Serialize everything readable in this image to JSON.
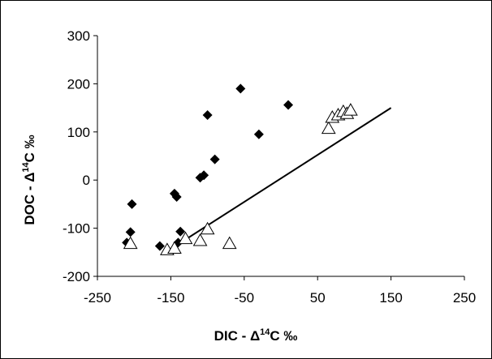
{
  "chart_data": {
    "type": "scatter",
    "title": "",
    "xlabel": {
      "pre": "DIC - Δ",
      "sup": "14",
      "post": "C ‰"
    },
    "ylabel": {
      "pre": "DOC - Δ",
      "sup": "14",
      "post": "C ‰"
    },
    "xlim": [
      -250,
      250
    ],
    "ylim": [
      -200,
      300
    ],
    "xticks": [
      "-250",
      "-150",
      "-50",
      "50",
      "150",
      "250"
    ],
    "yticks": [
      "-200",
      "-100",
      "0",
      "100",
      "200",
      "300"
    ],
    "grid": false,
    "legend": "none",
    "series": [
      {
        "marker": "filled-diamond",
        "color": "#000000",
        "points": [
          [
            -210,
            -130
          ],
          [
            -205,
            -108
          ],
          [
            -203,
            -50
          ],
          [
            -165,
            -137
          ],
          [
            -145,
            -28
          ],
          [
            -142,
            -35
          ],
          [
            -140,
            -130
          ],
          [
            -137,
            -107
          ],
          [
            -110,
            5
          ],
          [
            -105,
            10
          ],
          [
            -100,
            135
          ],
          [
            -90,
            43
          ],
          [
            -55,
            190
          ],
          [
            -30,
            95
          ],
          [
            10,
            156
          ]
        ]
      },
      {
        "marker": "open-triangle",
        "color": "#000000",
        "points": [
          [
            -205,
            -132
          ],
          [
            -155,
            -145
          ],
          [
            -145,
            -142
          ],
          [
            -130,
            -122
          ],
          [
            -110,
            -126
          ],
          [
            -100,
            -102
          ],
          [
            -70,
            -132
          ],
          [
            65,
            107
          ],
          [
            70,
            130
          ],
          [
            78,
            135
          ],
          [
            85,
            142
          ],
          [
            90,
            138
          ],
          [
            95,
            145
          ]
        ]
      }
    ],
    "trendline": {
      "from": [
        -155,
        -148
      ],
      "to": [
        150,
        150
      ],
      "color": "#000000"
    }
  }
}
